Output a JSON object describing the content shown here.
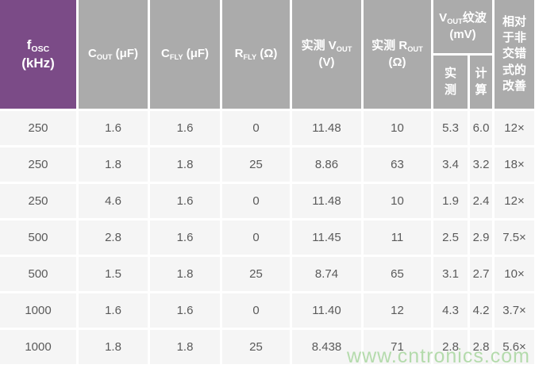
{
  "table": {
    "header": {
      "fosc": {
        "main": "f",
        "sub": "OSC",
        "line2": "(kHz)"
      },
      "cout": {
        "main": "C",
        "sub": "OUT",
        "rest": " (μF)"
      },
      "cfly": {
        "main": "C",
        "sub": "FLY",
        "rest": " (μF)"
      },
      "rfly": {
        "main": "R",
        "sub": "FLY",
        "rest": " (Ω)"
      },
      "vout": {
        "pre": "实测 V",
        "sub": "OUT",
        "line2": "(V)"
      },
      "rout": {
        "pre": "实测 R",
        "sub": "OUT",
        "line2": "(Ω)"
      },
      "ripple_group": {
        "pre": "V",
        "sub": "OUT",
        "rest": "纹波 (mV)"
      },
      "ripple_measured": "实\n测",
      "ripple_calculated": "计\n算",
      "improvement": "相对\n于非\n交错\n式的\n改善"
    },
    "rows": [
      [
        "250",
        "1.6",
        "1.6",
        "0",
        "11.48",
        "10",
        "5.3",
        "6.0",
        "12×"
      ],
      [
        "250",
        "1.8",
        "1.8",
        "25",
        "8.86",
        "63",
        "3.4",
        "3.2",
        "18×"
      ],
      [
        "250",
        "4.6",
        "1.6",
        "0",
        "11.48",
        "10",
        "1.9",
        "2.4",
        "12×"
      ],
      [
        "500",
        "2.8",
        "1.6",
        "0",
        "11.45",
        "11",
        "2.5",
        "2.9",
        "7.5×"
      ],
      [
        "500",
        "1.5",
        "1.8",
        "25",
        "8.74",
        "65",
        "3.1",
        "2.7",
        "10×"
      ],
      [
        "1000",
        "1.6",
        "1.6",
        "0",
        "11.40",
        "12",
        "4.3",
        "4.2",
        "3.7×"
      ],
      [
        "1000",
        "1.8",
        "1.8",
        "25",
        "8.438",
        "71",
        "2.8",
        "2.8",
        "5.6×"
      ]
    ]
  },
  "watermark": "www.cntronics.com",
  "colors": {
    "header_purple": "#7B4B87",
    "header_gray": "#ABABAB",
    "cell_bg": "#F5F5F5",
    "cell_text": "#5A5A5A",
    "watermark_green": "#B4DBAC"
  },
  "chart_data": {
    "type": "table",
    "title": "",
    "columns": [
      "fOSC (kHz)",
      "COUT (μF)",
      "CFLY (μF)",
      "RFLY (Ω)",
      "实测 VOUT (V)",
      "实测 ROUT (Ω)",
      "VOUT纹波 (mV) 实测",
      "VOUT纹波 (mV) 计算",
      "相对于非交错式的改善"
    ],
    "rows": [
      [
        250,
        1.6,
        1.6,
        0,
        11.48,
        10,
        5.3,
        6.0,
        "12×"
      ],
      [
        250,
        1.8,
        1.8,
        25,
        8.86,
        63,
        3.4,
        3.2,
        "18×"
      ],
      [
        250,
        4.6,
        1.6,
        0,
        11.48,
        10,
        1.9,
        2.4,
        "12×"
      ],
      [
        500,
        2.8,
        1.6,
        0,
        11.45,
        11,
        2.5,
        2.9,
        "7.5×"
      ],
      [
        500,
        1.5,
        1.8,
        25,
        8.74,
        65,
        3.1,
        2.7,
        "10×"
      ],
      [
        1000,
        1.6,
        1.6,
        0,
        11.4,
        12,
        4.3,
        4.2,
        "3.7×"
      ],
      [
        1000,
        1.8,
        1.8,
        25,
        8.438,
        71,
        2.8,
        2.8,
        "5.6×"
      ]
    ]
  }
}
